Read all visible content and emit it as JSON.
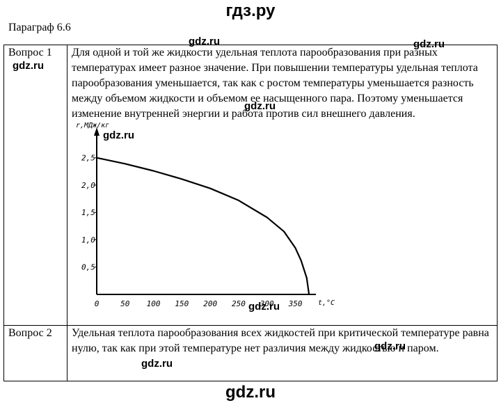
{
  "header": {
    "site": "гдз.ру"
  },
  "section": {
    "title": "Параграф 6.6"
  },
  "questions": [
    {
      "label": "Вопрос 1",
      "answer": "Для одной и той же жидкости удельная теплота парообразования при разных температурах имеет разное значение. При повышении температуры удельная теплота парообразования уменьшается, так как с ростом температуры уменьшается разность между объемом жидкости и объемом ее насыщенного пара. Поэтому уменьшается изменение внутренней энергии и работа против сил внешнего давления."
    },
    {
      "label": "Вопрос 2",
      "answer": "Удельная теплота парообразования всех жидкостей при критической температуре равна нулю, так как при этой температуре нет различия между жидкостью и паром."
    }
  ],
  "chart_data": {
    "type": "line",
    "title": "",
    "xlabel": "t,°C",
    "ylabel": "r,МДж/кг",
    "xlim": [
      0,
      380
    ],
    "ylim": [
      0,
      2.7
    ],
    "x_ticks": [
      "0",
      "50",
      "100",
      "150",
      "200",
      "250",
      "300",
      "350"
    ],
    "x_tick_values": [
      0,
      50,
      100,
      150,
      200,
      250,
      300,
      350
    ],
    "y_ticks": [
      "0,5",
      "1,0",
      "1,5",
      "2,0",
      "2,5"
    ],
    "y_tick_values": [
      0.5,
      1.0,
      1.5,
      2.0,
      2.5
    ],
    "grid": false,
    "series": [
      {
        "x": [
          0,
          50,
          100,
          150,
          200,
          250,
          300,
          330,
          350,
          360,
          370,
          374
        ],
        "y": [
          2.5,
          2.39,
          2.26,
          2.11,
          1.94,
          1.72,
          1.41,
          1.15,
          0.85,
          0.62,
          0.3,
          0.0
        ]
      }
    ]
  },
  "watermarks": [
    "gdz.ru",
    "gdz.ru",
    "gdz.ru",
    "gdz.ru",
    "gdz.ru",
    "gdz.ru",
    "gdz.ru",
    "gdz.ru"
  ],
  "footer": {
    "site": "gdz.ru"
  }
}
